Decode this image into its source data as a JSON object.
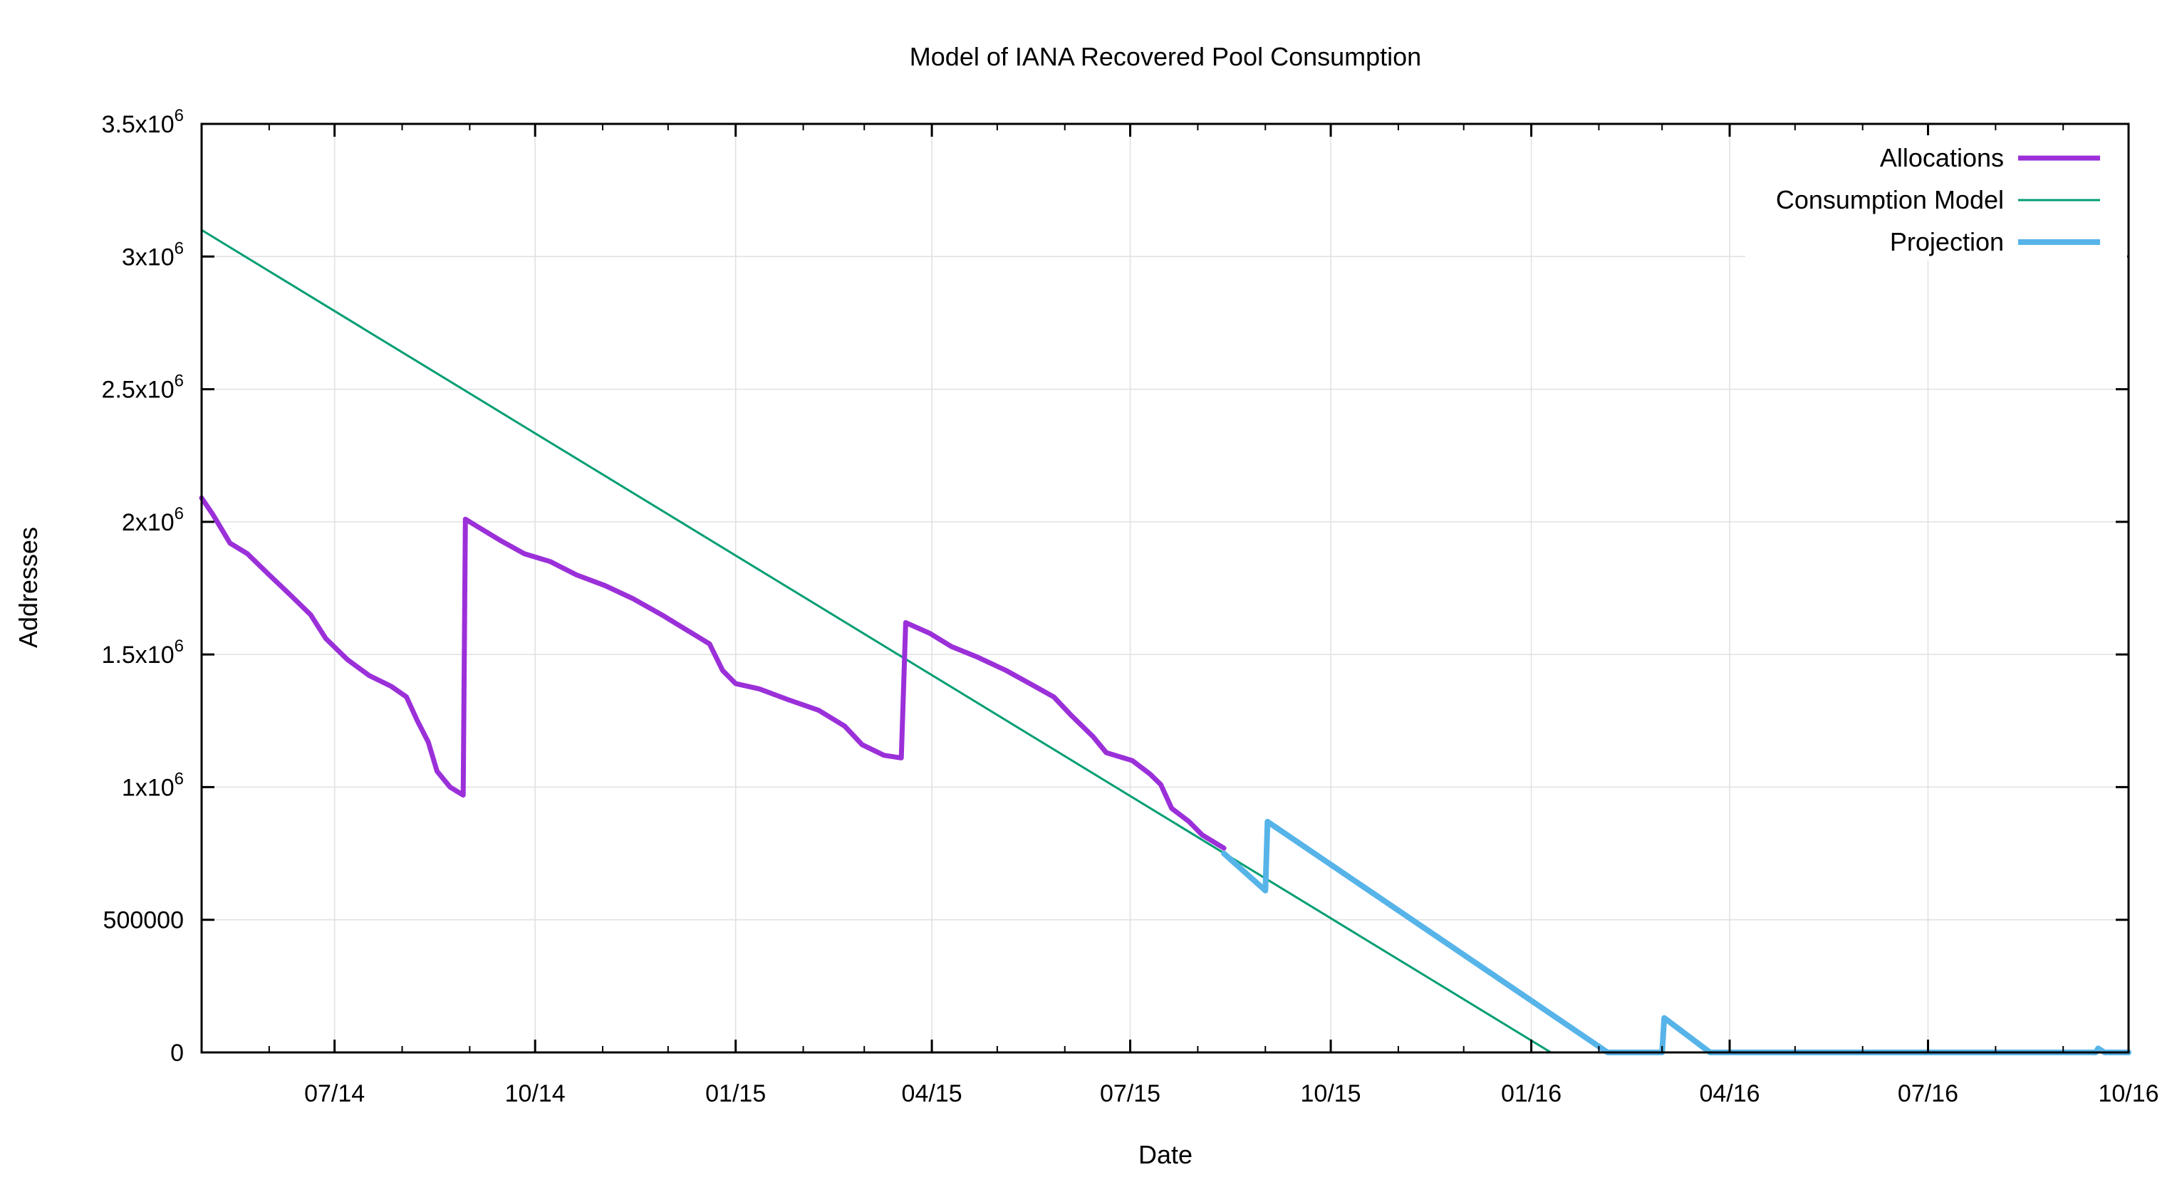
{
  "chart_data": {
    "type": "line",
    "title": "Model of IANA Recovered Pool Consumption",
    "xlabel": "Date",
    "ylabel": "Addresses",
    "xlim": [
      "2014-05-01",
      "2016-10-01"
    ],
    "ylim": [
      0,
      3500000
    ],
    "x_ticks": [
      {
        "date": "2014-07-01",
        "label": "07/14"
      },
      {
        "date": "2014-10-01",
        "label": "10/14"
      },
      {
        "date": "2015-01-01",
        "label": "01/15"
      },
      {
        "date": "2015-04-01",
        "label": "04/15"
      },
      {
        "date": "2015-07-01",
        "label": "07/15"
      },
      {
        "date": "2015-10-01",
        "label": "10/15"
      },
      {
        "date": "2016-01-01",
        "label": "01/16"
      },
      {
        "date": "2016-04-01",
        "label": "04/16"
      },
      {
        "date": "2016-07-01",
        "label": "07/16"
      },
      {
        "date": "2016-10-01",
        "label": "10/16"
      }
    ],
    "y_ticks": [
      {
        "value": 0,
        "mantissa": "0",
        "exp": ""
      },
      {
        "value": 500000,
        "mantissa": "500000",
        "exp": ""
      },
      {
        "value": 1000000,
        "mantissa": "1x10",
        "exp": "6"
      },
      {
        "value": 1500000,
        "mantissa": "1.5x10",
        "exp": "6"
      },
      {
        "value": 2000000,
        "mantissa": "2x10",
        "exp": "6"
      },
      {
        "value": 2500000,
        "mantissa": "2.5x10",
        "exp": "6"
      },
      {
        "value": 3000000,
        "mantissa": "3x10",
        "exp": "6"
      },
      {
        "value": 3500000,
        "mantissa": "3.5x10",
        "exp": "6"
      }
    ],
    "grid": true,
    "legend_position": "top-right",
    "series": [
      {
        "name": "Allocations",
        "color": "#9b30d9",
        "points": [
          [
            "2014-05-01",
            2090000
          ],
          [
            "2014-05-06",
            2030000
          ],
          [
            "2014-05-14",
            1920000
          ],
          [
            "2014-05-22",
            1880000
          ],
          [
            "2014-06-01",
            1800000
          ],
          [
            "2014-06-10",
            1730000
          ],
          [
            "2014-06-20",
            1650000
          ],
          [
            "2014-06-27",
            1560000
          ],
          [
            "2014-07-07",
            1480000
          ],
          [
            "2014-07-17",
            1420000
          ],
          [
            "2014-07-27",
            1380000
          ],
          [
            "2014-08-03",
            1340000
          ],
          [
            "2014-08-08",
            1250000
          ],
          [
            "2014-08-13",
            1170000
          ],
          [
            "2014-08-17",
            1060000
          ],
          [
            "2014-08-23",
            1000000
          ],
          [
            "2014-08-29",
            970000
          ],
          [
            "2014-08-30",
            2010000
          ],
          [
            "2014-09-05",
            1980000
          ],
          [
            "2014-09-15",
            1930000
          ],
          [
            "2014-09-26",
            1880000
          ],
          [
            "2014-10-08",
            1850000
          ],
          [
            "2014-10-20",
            1800000
          ],
          [
            "2014-11-02",
            1760000
          ],
          [
            "2014-11-15",
            1710000
          ],
          [
            "2014-11-28",
            1650000
          ],
          [
            "2014-12-10",
            1590000
          ],
          [
            "2014-12-20",
            1540000
          ],
          [
            "2014-12-26",
            1440000
          ],
          [
            "2015-01-01",
            1390000
          ],
          [
            "2015-01-12",
            1370000
          ],
          [
            "2015-01-25",
            1330000
          ],
          [
            "2015-02-08",
            1290000
          ],
          [
            "2015-02-20",
            1230000
          ],
          [
            "2015-02-28",
            1160000
          ],
          [
            "2015-03-10",
            1120000
          ],
          [
            "2015-03-18",
            1110000
          ],
          [
            "2015-03-20",
            1620000
          ],
          [
            "2015-03-31",
            1580000
          ],
          [
            "2015-04-10",
            1530000
          ],
          [
            "2015-04-22",
            1490000
          ],
          [
            "2015-05-05",
            1440000
          ],
          [
            "2015-05-16",
            1390000
          ],
          [
            "2015-05-27",
            1340000
          ],
          [
            "2015-06-04",
            1270000
          ],
          [
            "2015-06-14",
            1190000
          ],
          [
            "2015-06-20",
            1130000
          ],
          [
            "2015-07-02",
            1100000
          ],
          [
            "2015-07-10",
            1050000
          ],
          [
            "2015-07-15",
            1010000
          ],
          [
            "2015-07-20",
            920000
          ],
          [
            "2015-07-28",
            870000
          ],
          [
            "2015-08-03",
            820000
          ],
          [
            "2015-08-13",
            770000
          ]
        ]
      },
      {
        "name": "Consumption Model",
        "color": "#009e73",
        "points": [
          [
            "2014-05-01",
            3100000
          ],
          [
            "2016-01-10",
            0
          ]
        ]
      },
      {
        "name": "Projection",
        "color": "#56b4e9",
        "points": [
          [
            "2015-08-13",
            750000
          ],
          [
            "2015-09-01",
            610000
          ],
          [
            "2015-09-02",
            870000
          ],
          [
            "2016-02-05",
            0
          ],
          [
            "2016-03-01",
            0
          ],
          [
            "2016-03-02",
            130000
          ],
          [
            "2016-03-23",
            0
          ],
          [
            "2016-09-16",
            0
          ],
          [
            "2016-09-17",
            15000
          ],
          [
            "2016-09-20",
            0
          ],
          [
            "2016-10-01",
            0
          ]
        ]
      }
    ]
  }
}
